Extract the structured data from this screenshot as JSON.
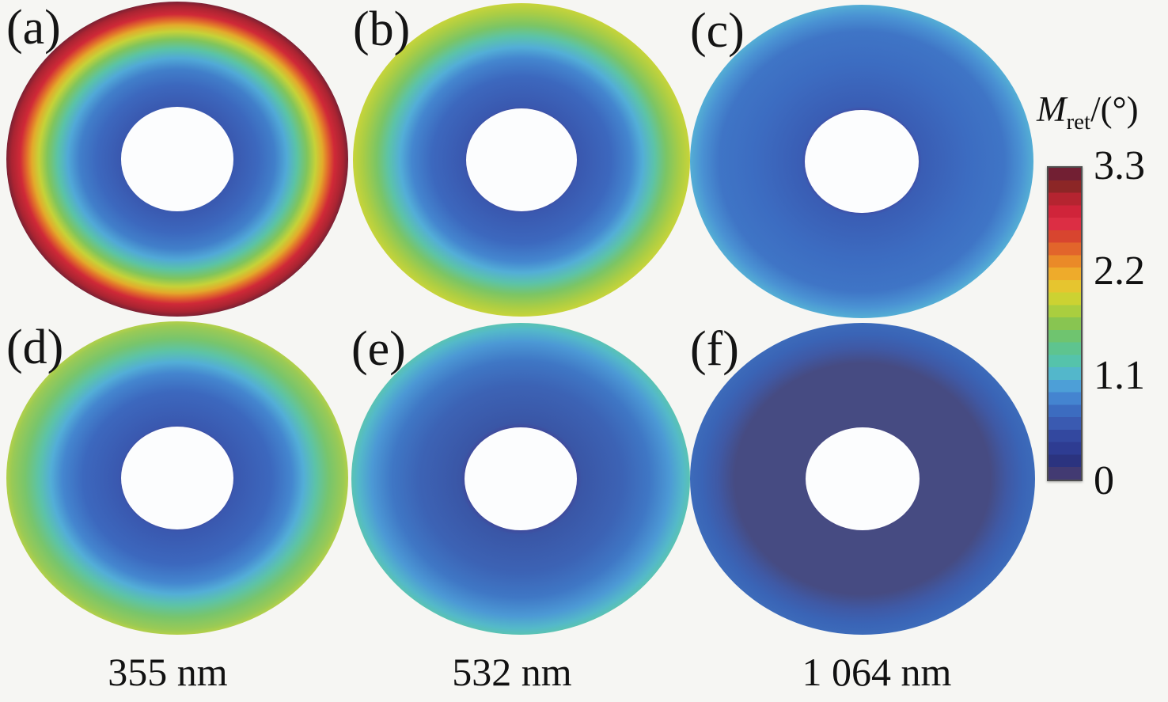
{
  "chart_data": {
    "type": "heatmap",
    "subtype": "annular-maps",
    "layout": {
      "rows": 2,
      "cols": 3,
      "legend_position": "right",
      "grid": false
    },
    "column_labels": [
      "355 nm",
      "532 nm",
      "1 064 nm"
    ],
    "colorbar": {
      "title": {
        "symbol": "M",
        "subscript": "ret",
        "suffix": "/(°)"
      },
      "min": 0,
      "max": 3.3,
      "ticks": [
        {
          "value": 3.3,
          "label": "3.3"
        },
        {
          "value": 2.2,
          "label": "2.2"
        },
        {
          "value": 1.1,
          "label": "1.1"
        },
        {
          "value": 0,
          "label": "0"
        }
      ],
      "colors_top_to_bottom": [
        "#721f33",
        "#8c2626",
        "#b52430",
        "#d0243a",
        "#dc2e44",
        "#d8452f",
        "#e2652b",
        "#ea8a28",
        "#eeab2b",
        "#e6c52f",
        "#ccd232",
        "#aace3f",
        "#88c551",
        "#6fc46f",
        "#5ec48f",
        "#55c3ab",
        "#53b7cb",
        "#4d9fd7",
        "#4484d0",
        "#3c6cc0",
        "#3a5ab1",
        "#33489f",
        "#2e3c92",
        "#2b337f",
        "#423a72"
      ]
    },
    "panels": [
      {
        "id": "a",
        "label": "(a)",
        "row": 1,
        "col": 1,
        "wavelength": "355 nm",
        "value_range": {
          "inner": 0.45,
          "outer": 3.3
        },
        "radial_profile": [
          {
            "rho": 0.33,
            "value": 0.45
          },
          {
            "rho": 0.5,
            "value": 0.75
          },
          {
            "rho": 0.63,
            "value": 1.1
          },
          {
            "rho": 0.7,
            "value": 1.5
          },
          {
            "rho": 0.78,
            "value": 2.0
          },
          {
            "rho": 0.84,
            "value": 2.5
          },
          {
            "rho": 0.92,
            "value": 3.0
          },
          {
            "rho": 1.0,
            "value": 3.3
          }
        ],
        "gradient_stops": [
          {
            "at": 30,
            "color": "#463f93"
          },
          {
            "at": 33,
            "color": "#3a58af"
          },
          {
            "at": 47,
            "color": "#3c68be"
          },
          {
            "at": 57,
            "color": "#417fca"
          },
          {
            "at": 64,
            "color": "#51a9d7"
          },
          {
            "at": 70,
            "color": "#5ac3a7"
          },
          {
            "at": 76,
            "color": "#80c55c"
          },
          {
            "at": 81,
            "color": "#c6d238"
          },
          {
            "at": 85,
            "color": "#e3ab2b"
          },
          {
            "at": 88,
            "color": "#e2702b"
          },
          {
            "at": 92,
            "color": "#d02937"
          },
          {
            "at": 97,
            "color": "#aa2432"
          },
          {
            "at": 100,
            "color": "#7b2133"
          }
        ]
      },
      {
        "id": "b",
        "label": "(b)",
        "row": 1,
        "col": 2,
        "wavelength": "532 nm",
        "value_range": {
          "inner": 0.45,
          "outer": 2.05
        },
        "radial_profile": [
          {
            "rho": 0.33,
            "value": 0.45
          },
          {
            "rho": 0.55,
            "value": 0.75
          },
          {
            "rho": 0.66,
            "value": 0.95
          },
          {
            "rho": 0.73,
            "value": 1.15
          },
          {
            "rho": 0.8,
            "value": 1.4
          },
          {
            "rho": 0.88,
            "value": 1.7
          },
          {
            "rho": 1.0,
            "value": 2.05
          }
        ],
        "gradient_stops": [
          {
            "at": 30,
            "color": "#463f93"
          },
          {
            "at": 34,
            "color": "#3a58af"
          },
          {
            "at": 53,
            "color": "#3c68be"
          },
          {
            "at": 65,
            "color": "#4486cf"
          },
          {
            "at": 72,
            "color": "#53aed7"
          },
          {
            "at": 79,
            "color": "#5cc3a8"
          },
          {
            "at": 86,
            "color": "#7bc565"
          },
          {
            "at": 94,
            "color": "#a9cd45"
          },
          {
            "at": 100,
            "color": "#c7d43a"
          }
        ]
      },
      {
        "id": "c",
        "label": "(c)",
        "row": 1,
        "col": 3,
        "wavelength": "1 064 nm",
        "value_range": {
          "inner": 0.5,
          "outer": 1.15
        },
        "radial_profile": [
          {
            "rho": 0.33,
            "value": 0.5
          },
          {
            "rho": 0.62,
            "value": 0.7
          },
          {
            "rho": 0.83,
            "value": 0.75
          },
          {
            "rho": 0.93,
            "value": 0.95
          },
          {
            "rho": 1.0,
            "value": 1.15
          }
        ],
        "gradient_stops": [
          {
            "at": 30,
            "color": "#46409a"
          },
          {
            "at": 35,
            "color": "#3a5db4"
          },
          {
            "at": 62,
            "color": "#3c6cc1"
          },
          {
            "at": 83,
            "color": "#3f75c6"
          },
          {
            "at": 93,
            "color": "#4a92d3"
          },
          {
            "at": 100,
            "color": "#54aed5"
          }
        ]
      },
      {
        "id": "d",
        "label": "(d)",
        "row": 2,
        "col": 1,
        "wavelength": "355 nm",
        "value_range": {
          "inner": 0.45,
          "outer": 1.9
        },
        "radial_profile": [
          {
            "rho": 0.33,
            "value": 0.45
          },
          {
            "rho": 0.55,
            "value": 0.75
          },
          {
            "rho": 0.67,
            "value": 0.95
          },
          {
            "rho": 0.74,
            "value": 1.15
          },
          {
            "rho": 0.81,
            "value": 1.4
          },
          {
            "rho": 0.89,
            "value": 1.6
          },
          {
            "rho": 1.0,
            "value": 1.9
          }
        ],
        "gradient_stops": [
          {
            "at": 30,
            "color": "#463f93"
          },
          {
            "at": 34,
            "color": "#3a58af"
          },
          {
            "at": 55,
            "color": "#3c68be"
          },
          {
            "at": 67,
            "color": "#4486cf"
          },
          {
            "at": 74,
            "color": "#53aed7"
          },
          {
            "at": 81,
            "color": "#5cc3a8"
          },
          {
            "at": 89,
            "color": "#78c56c"
          },
          {
            "at": 97,
            "color": "#9aca55"
          },
          {
            "at": 100,
            "color": "#b3d04a"
          }
        ]
      },
      {
        "id": "e",
        "label": "(e)",
        "row": 2,
        "col": 2,
        "wavelength": "532 nm",
        "value_range": {
          "inner": 0.4,
          "outer": 1.45
        },
        "radial_profile": [
          {
            "rho": 0.33,
            "value": 0.4
          },
          {
            "rho": 0.58,
            "value": 0.65
          },
          {
            "rho": 0.75,
            "value": 0.8
          },
          {
            "rho": 0.87,
            "value": 1.0
          },
          {
            "rho": 0.96,
            "value": 1.25
          },
          {
            "rho": 1.0,
            "value": 1.45
          }
        ],
        "gradient_stops": [
          {
            "at": 30,
            "color": "#463f93"
          },
          {
            "at": 36,
            "color": "#3a56a6"
          },
          {
            "at": 60,
            "color": "#3c63b5"
          },
          {
            "at": 76,
            "color": "#3f77c5"
          },
          {
            "at": 88,
            "color": "#4c99d5"
          },
          {
            "at": 96,
            "color": "#54b9c9"
          },
          {
            "at": 100,
            "color": "#5ac3b3"
          }
        ]
      },
      {
        "id": "f",
        "label": "(f)",
        "row": 2,
        "col": 3,
        "wavelength": "1 064 nm",
        "value_range": {
          "inner": 0.15,
          "outer": 0.7
        },
        "radial_profile": [
          {
            "rho": 0.33,
            "value": 0.15
          },
          {
            "rho": 0.74,
            "value": 0.2
          },
          {
            "rho": 0.85,
            "value": 0.5
          },
          {
            "rho": 1.0,
            "value": 0.7
          }
        ],
        "gradient_stops": [
          {
            "at": 30,
            "color": "#474087"
          },
          {
            "at": 34,
            "color": "#464b82"
          },
          {
            "at": 74,
            "color": "#464b82"
          },
          {
            "at": 84,
            "color": "#3f59a5"
          },
          {
            "at": 93,
            "color": "#3a64b6"
          },
          {
            "at": 100,
            "color": "#3c6bba"
          }
        ]
      }
    ]
  }
}
